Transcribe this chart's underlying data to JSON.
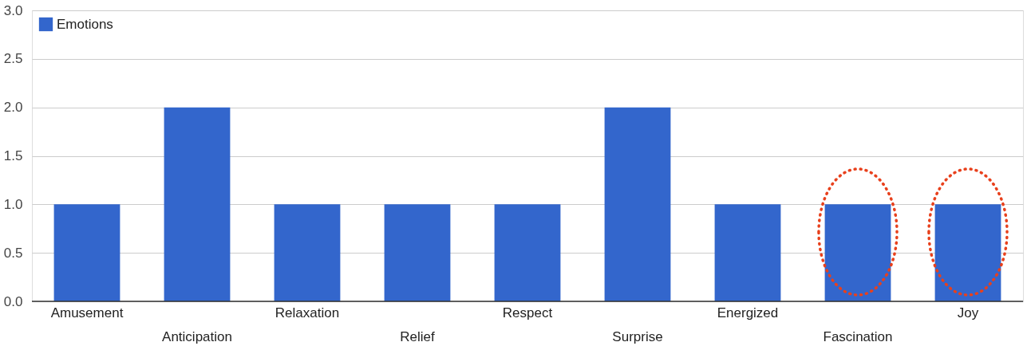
{
  "chart_data": {
    "type": "bar",
    "categories": [
      "Amusement",
      "Anticipation",
      "Relaxation",
      "Relief",
      "Respect",
      "Surprise",
      "Energized",
      "Fascination",
      "Joy"
    ],
    "series": [
      {
        "name": "Emotions",
        "color": "#3366cc",
        "values": [
          1,
          2,
          1,
          1,
          1,
          2,
          1,
          1,
          1
        ]
      }
    ],
    "ylim": [
      0,
      3
    ],
    "yticks": [
      {
        "value": 0,
        "label": "0.0"
      },
      {
        "value": 0.5,
        "label": "0.5"
      },
      {
        "value": 1,
        "label": "1.0"
      },
      {
        "value": 1.5,
        "label": "1.5"
      },
      {
        "value": 2,
        "label": "2.0"
      },
      {
        "value": 2.5,
        "label": "2.5"
      },
      {
        "value": 3,
        "label": "3.0"
      }
    ],
    "grid": "y",
    "legend": "top left"
  }
}
